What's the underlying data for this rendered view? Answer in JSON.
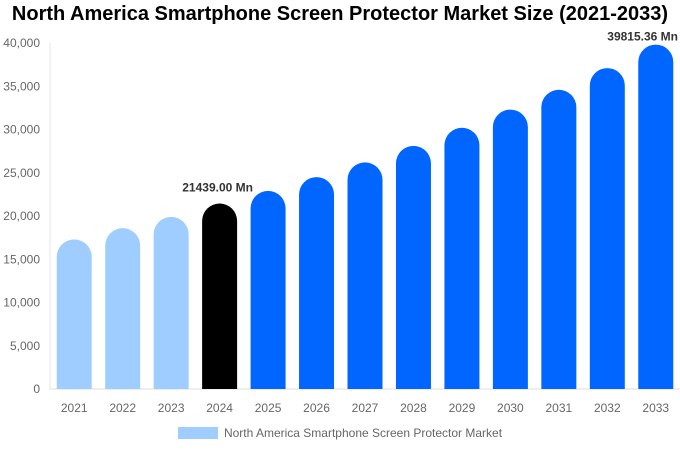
{
  "chart_data": {
    "type": "bar",
    "title": "North America Smartphone Screen Protector Market Size (2021-2033)",
    "categories": [
      "2021",
      "2022",
      "2023",
      "2024",
      "2025",
      "2026",
      "2027",
      "2028",
      "2029",
      "2030",
      "2031",
      "2032",
      "2033"
    ],
    "series": [
      {
        "name": "North America Smartphone Screen Protector Market",
        "values": [
          17300,
          18600,
          19900,
          21439,
          22900,
          24500,
          26200,
          28100,
          30200,
          32300,
          34600,
          37100,
          39815.36
        ]
      }
    ],
    "ylim": [
      0,
      40000
    ],
    "yticks": [
      "0",
      "5,000",
      "10,000",
      "15,000",
      "20,000",
      "25,000",
      "30,000",
      "35,000",
      "40,000"
    ],
    "data_labels": {
      "3": "21439.00 Mn",
      "12": "39815.36 Mn"
    },
    "colors": {
      "historic": "#a0cdff",
      "base_year": "#000000",
      "forecast": "#0066ff"
    },
    "grid": false,
    "legend_position": "bottom"
  }
}
